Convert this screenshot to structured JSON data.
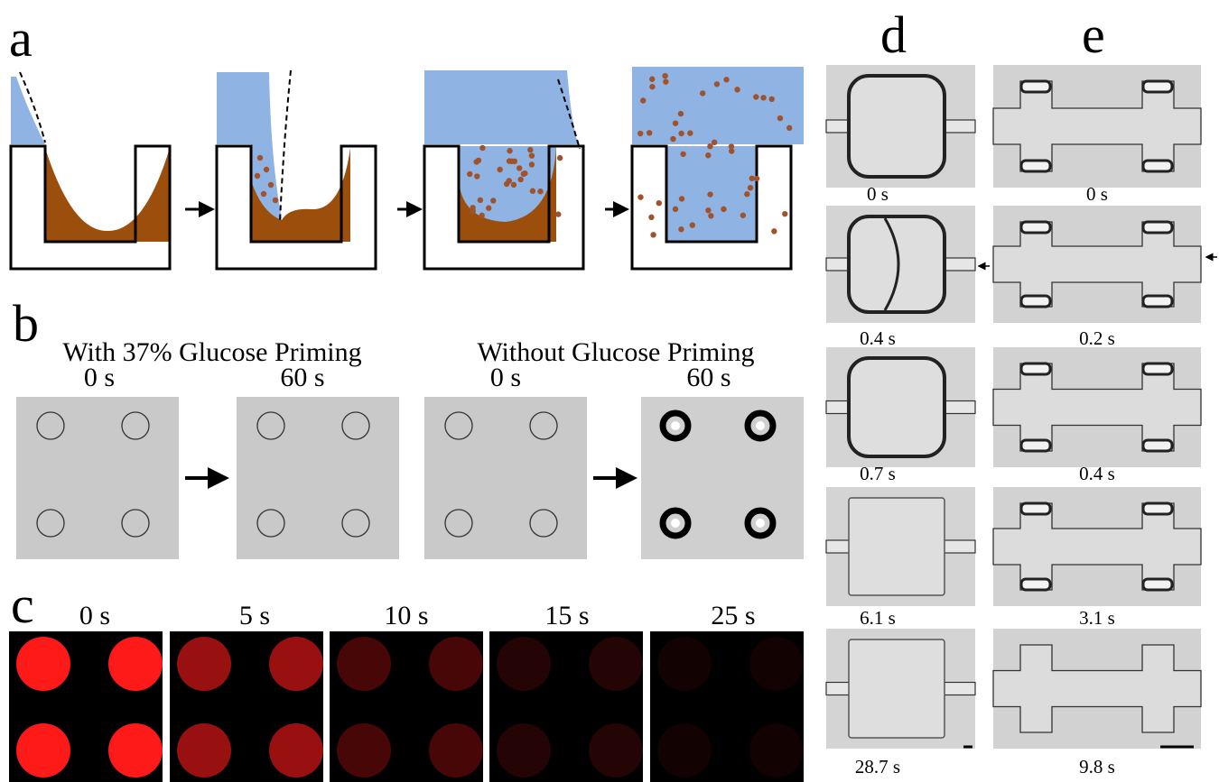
{
  "panels": {
    "a": {
      "label": "a"
    },
    "b": {
      "label": "b",
      "groups": [
        {
          "title": "With 37% Glucose Priming",
          "times": [
            "0 s",
            "60 s"
          ]
        },
        {
          "title": "Without Glucose Priming",
          "times": [
            "0 s",
            "60 s"
          ]
        }
      ]
    },
    "c": {
      "label": "c",
      "times": [
        "0 s",
        "5 s",
        "10 s",
        "15 s",
        "25 s"
      ]
    },
    "d": {
      "label": "d",
      "times": [
        "0 s",
        "0.4 s",
        "0.7 s",
        "6.1 s",
        "28.7 s"
      ]
    },
    "e": {
      "label": "e",
      "times": [
        "0 s",
        "0.2 s",
        "0.4 s",
        "3.1 s",
        "9.8 s"
      ]
    }
  }
}
